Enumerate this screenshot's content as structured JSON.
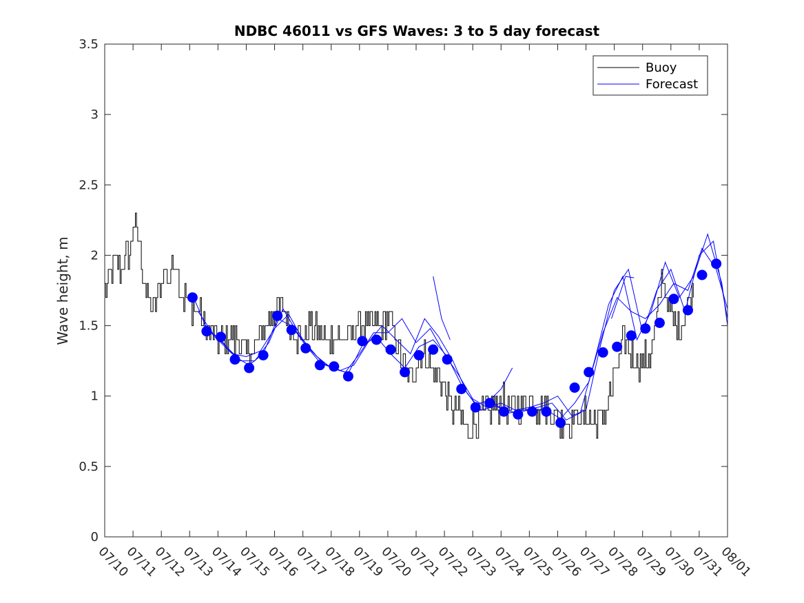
{
  "chart_data": {
    "type": "line",
    "title": "NDBC 46011 vs GFS Waves: 3 to 5 day forecast",
    "xlabel": "",
    "ylabel": "Wave height, m",
    "xlim": [
      0,
      22
    ],
    "ylim": [
      0,
      3.5
    ],
    "y_ticks": [
      "0",
      "0.5",
      "1",
      "1.5",
      "2",
      "2.5",
      "3",
      "3.5"
    ],
    "x_ticks": [
      "07/10",
      "07/11",
      "07/12",
      "07/13",
      "07/14",
      "07/15",
      "07/16",
      "07/17",
      "07/18",
      "07/19",
      "07/20",
      "07/21",
      "07/22",
      "07/23",
      "07/24",
      "07/25",
      "07/26",
      "07/27",
      "07/28",
      "07/29",
      "07/30",
      "07/31",
      "08/01"
    ],
    "x_unit": "days since 07/10",
    "grid": false,
    "legend_position": "top-right",
    "legend": [
      {
        "label": "Buoy",
        "color": "#000000"
      },
      {
        "label": "Forecast",
        "color": "#0000ff"
      }
    ],
    "colors": {
      "buoy": "#000000",
      "forecast": "#0000ff"
    },
    "buoy_anchors": [
      [
        0.0,
        1.75
      ],
      [
        0.3,
        1.95
      ],
      [
        0.6,
        1.9
      ],
      [
        0.9,
        2.05
      ],
      [
        1.0,
        2.2
      ],
      [
        1.2,
        2.1
      ],
      [
        1.35,
        1.85
      ],
      [
        1.5,
        1.7
      ],
      [
        1.7,
        1.6
      ],
      [
        1.9,
        1.7
      ],
      [
        2.1,
        1.9
      ],
      [
        2.3,
        1.85
      ],
      [
        2.5,
        2.0
      ],
      [
        2.7,
        1.75
      ],
      [
        2.9,
        1.65
      ],
      [
        3.1,
        1.65
      ],
      [
        3.3,
        1.6
      ],
      [
        3.5,
        1.5
      ],
      [
        3.7,
        1.45
      ],
      [
        3.9,
        1.4
      ],
      [
        4.1,
        1.38
      ],
      [
        4.3,
        1.4
      ],
      [
        4.5,
        1.42
      ],
      [
        4.7,
        1.38
      ],
      [
        4.9,
        1.3
      ],
      [
        5.1,
        1.3
      ],
      [
        5.3,
        1.32
      ],
      [
        5.5,
        1.42
      ],
      [
        5.7,
        1.52
      ],
      [
        5.9,
        1.6
      ],
      [
        6.1,
        1.65
      ],
      [
        6.3,
        1.6
      ],
      [
        6.5,
        1.52
      ],
      [
        6.7,
        1.45
      ],
      [
        6.9,
        1.4
      ],
      [
        7.1,
        1.45
      ],
      [
        7.3,
        1.5
      ],
      [
        7.5,
        1.48
      ],
      [
        7.7,
        1.42
      ],
      [
        7.9,
        1.4
      ],
      [
        8.1,
        1.45
      ],
      [
        8.3,
        1.42
      ],
      [
        8.5,
        1.4
      ],
      [
        8.7,
        1.45
      ],
      [
        8.9,
        1.5
      ],
      [
        9.1,
        1.52
      ],
      [
        9.3,
        1.5
      ],
      [
        9.5,
        1.48
      ],
      [
        9.7,
        1.52
      ],
      [
        9.9,
        1.55
      ],
      [
        10.1,
        1.5
      ],
      [
        10.3,
        1.42
      ],
      [
        10.5,
        1.25
      ],
      [
        10.7,
        1.12
      ],
      [
        10.9,
        1.15
      ],
      [
        11.1,
        1.3
      ],
      [
        11.3,
        1.3
      ],
      [
        11.5,
        1.22
      ],
      [
        11.7,
        1.15
      ],
      [
        11.9,
        1.1
      ],
      [
        12.1,
        1.0
      ],
      [
        12.3,
        0.9
      ],
      [
        12.5,
        0.85
      ],
      [
        12.7,
        0.8
      ],
      [
        12.9,
        0.78
      ],
      [
        13.1,
        0.8
      ],
      [
        13.3,
        0.85
      ],
      [
        13.5,
        0.9
      ],
      [
        13.7,
        0.92
      ],
      [
        13.9,
        0.95
      ],
      [
        14.1,
        0.95
      ],
      [
        14.3,
        0.9
      ],
      [
        14.5,
        0.92
      ],
      [
        14.7,
        0.95
      ],
      [
        14.9,
        0.98
      ],
      [
        15.1,
        0.95
      ],
      [
        15.3,
        0.92
      ],
      [
        15.5,
        0.95
      ],
      [
        15.7,
        0.9
      ],
      [
        15.9,
        0.85
      ],
      [
        16.1,
        0.8
      ],
      [
        16.3,
        0.82
      ],
      [
        16.5,
        0.85
      ],
      [
        16.7,
        0.85
      ],
      [
        16.9,
        0.85
      ],
      [
        17.1,
        0.85
      ],
      [
        17.3,
        0.82
      ],
      [
        17.5,
        0.85
      ],
      [
        17.7,
        0.9
      ],
      [
        17.9,
        1.05
      ],
      [
        18.1,
        1.2
      ],
      [
        18.3,
        1.4
      ],
      [
        18.5,
        1.35
      ],
      [
        18.7,
        1.25
      ],
      [
        18.9,
        1.25
      ],
      [
        19.1,
        1.25
      ],
      [
        19.3,
        1.3
      ],
      [
        19.5,
        1.55
      ],
      [
        19.7,
        1.85
      ],
      [
        19.9,
        1.65
      ],
      [
        20.1,
        1.55
      ],
      [
        20.3,
        1.45
      ],
      [
        20.5,
        1.6
      ],
      [
        20.7,
        1.7
      ],
      [
        20.8,
        1.8
      ]
    ],
    "forecast_points": {
      "x": [
        3.1,
        3.6,
        4.1,
        4.6,
        5.1,
        5.6,
        6.1,
        6.6,
        7.1,
        7.6,
        8.1,
        8.6,
        9.1,
        9.6,
        10.1,
        10.6,
        11.1,
        11.6,
        12.1,
        12.6,
        13.1,
        13.6,
        14.1,
        14.6,
        15.1,
        15.6,
        16.1,
        16.6,
        17.1,
        17.6,
        18.1,
        18.6,
        19.1,
        19.6,
        20.1,
        20.6,
        21.1,
        21.6
      ],
      "y": [
        1.7,
        1.46,
        1.42,
        1.26,
        1.2,
        1.29,
        1.57,
        1.47,
        1.34,
        1.22,
        1.21,
        1.14,
        1.39,
        1.4,
        1.33,
        1.17,
        1.29,
        1.33,
        1.26,
        1.05,
        0.92,
        0.95,
        0.89,
        0.87,
        0.89,
        0.89,
        0.81,
        1.06,
        1.17,
        1.31,
        1.35,
        1.43,
        1.48,
        1.52,
        1.69,
        1.61,
        1.86,
        1.94
      ]
    },
    "forecast_runs": [
      {
        "x": [
          3.1,
          3.6,
          4.1,
          4.6,
          5.1,
          5.6,
          6.1,
          6.6,
          7.1,
          7.6,
          8.1,
          8.6,
          9.1,
          9.6,
          10.1,
          10.6,
          11.1,
          11.6,
          12.1,
          12.6,
          13.1,
          13.6,
          14.1,
          14.6,
          15.1,
          15.6,
          16.1,
          16.6,
          17.1,
          17.6,
          18.1,
          18.6,
          19.1,
          19.6,
          20.1,
          20.6,
          21.1,
          21.6,
          22.0
        ],
        "y": [
          1.72,
          1.48,
          1.4,
          1.28,
          1.22,
          1.3,
          1.55,
          1.5,
          1.36,
          1.24,
          1.2,
          1.16,
          1.36,
          1.42,
          1.3,
          1.2,
          1.35,
          1.4,
          1.28,
          1.08,
          0.94,
          0.97,
          0.9,
          0.88,
          0.91,
          0.9,
          0.84,
          0.95,
          1.1,
          1.45,
          1.7,
          1.6,
          1.55,
          1.65,
          1.8,
          1.75,
          2.05,
          1.9,
          1.62
        ]
      },
      {
        "x": [
          3.3,
          3.8,
          4.3,
          4.8,
          5.3,
          5.8,
          6.3,
          6.8,
          7.3,
          7.8,
          8.3,
          8.8,
          9.3,
          9.8,
          10.3,
          10.8,
          11.3,
          11.8,
          12.3,
          12.8,
          13.3,
          13.8,
          14.3,
          14.8,
          15.3,
          15.8,
          16.3,
          16.8,
          17.3,
          17.8,
          18.3,
          18.8,
          19.3,
          19.8,
          20.3,
          20.8,
          21.3,
          21.8,
          22.0
        ],
        "y": [
          1.6,
          1.45,
          1.35,
          1.25,
          1.25,
          1.38,
          1.62,
          1.45,
          1.32,
          1.22,
          1.18,
          1.22,
          1.38,
          1.5,
          1.4,
          1.3,
          1.55,
          1.42,
          1.25,
          1.02,
          0.9,
          0.93,
          0.88,
          0.9,
          0.92,
          0.95,
          0.83,
          0.88,
          1.25,
          1.65,
          1.85,
          1.4,
          1.6,
          1.95,
          1.7,
          1.85,
          2.15,
          1.8,
          1.5
        ]
      },
      {
        "x": [
          3.5,
          4.0,
          4.5,
          5.0,
          5.5,
          6.0,
          6.5,
          7.0,
          7.5,
          8.0,
          8.5,
          9.0,
          9.5,
          10.0,
          10.5,
          11.0,
          11.5,
          12.0,
          12.5,
          13.0,
          13.5,
          14.0,
          14.5,
          15.0,
          15.5,
          16.0,
          16.5,
          17.0,
          17.5,
          18.0,
          18.5,
          19.0,
          19.5,
          20.0,
          20.5,
          21.0,
          21.5,
          22.0
        ],
        "y": [
          1.5,
          1.4,
          1.3,
          1.28,
          1.32,
          1.48,
          1.58,
          1.4,
          1.28,
          1.2,
          1.17,
          1.3,
          1.45,
          1.45,
          1.55,
          1.38,
          1.48,
          1.3,
          1.15,
          0.98,
          0.92,
          0.95,
          0.9,
          0.92,
          0.95,
          1.0,
          0.86,
          0.9,
          1.35,
          1.75,
          1.9,
          1.45,
          1.75,
          1.9,
          1.6,
          2.0,
          2.1,
          1.55
        ]
      },
      {
        "x": [
          11.6,
          11.9,
          12.2
        ],
        "y": [
          1.85,
          1.55,
          1.4
        ]
      },
      {
        "x": [
          13.5,
          14.0,
          14.4
        ],
        "y": [
          0.95,
          1.05,
          1.2
        ]
      },
      {
        "x": [
          17.9,
          18.4,
          18.7
        ],
        "y": [
          1.55,
          1.85,
          1.84
        ]
      }
    ]
  }
}
